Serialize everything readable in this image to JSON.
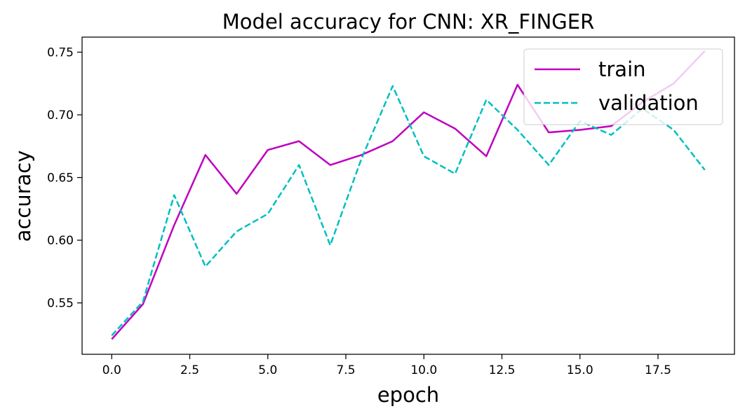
{
  "chart_data": {
    "type": "line",
    "title": "Model accuracy for CNN: XR_FINGER",
    "xlabel": "epoch",
    "ylabel": "accuracy",
    "x": [
      0,
      1,
      2,
      3,
      4,
      5,
      6,
      7,
      8,
      9,
      10,
      11,
      12,
      13,
      14,
      15,
      16,
      17,
      18,
      19
    ],
    "xlim": [
      -0.95,
      19.95
    ],
    "ylim": [
      0.509,
      0.762
    ],
    "xticks": [
      0.0,
      2.5,
      5.0,
      7.5,
      10.0,
      12.5,
      15.0,
      17.5
    ],
    "xtick_labels": [
      "0.0",
      "2.5",
      "5.0",
      "7.5",
      "10.0",
      "12.5",
      "15.0",
      "17.5"
    ],
    "yticks": [
      0.55,
      0.6,
      0.65,
      0.7,
      0.75
    ],
    "ytick_labels": [
      "0.55",
      "0.60",
      "0.65",
      "0.70",
      "0.75"
    ],
    "grid": false,
    "legend_position": "upper-right",
    "series": [
      {
        "name": "train",
        "color": "#bf00bf",
        "line_style": "solid",
        "values": [
          0.521,
          0.549,
          0.612,
          0.668,
          0.637,
          0.672,
          0.679,
          0.66,
          0.668,
          0.679,
          0.702,
          0.689,
          0.667,
          0.724,
          0.686,
          0.688,
          0.691,
          0.71,
          0.725,
          0.751
        ]
      },
      {
        "name": "validation",
        "color": "#00bfbf",
        "line_style": "dashed",
        "values": [
          0.524,
          0.551,
          0.636,
          0.579,
          0.607,
          0.621,
          0.66,
          0.596,
          0.665,
          0.723,
          0.667,
          0.653,
          0.712,
          0.688,
          0.66,
          0.695,
          0.684,
          0.705,
          0.688,
          0.656
        ]
      }
    ]
  }
}
